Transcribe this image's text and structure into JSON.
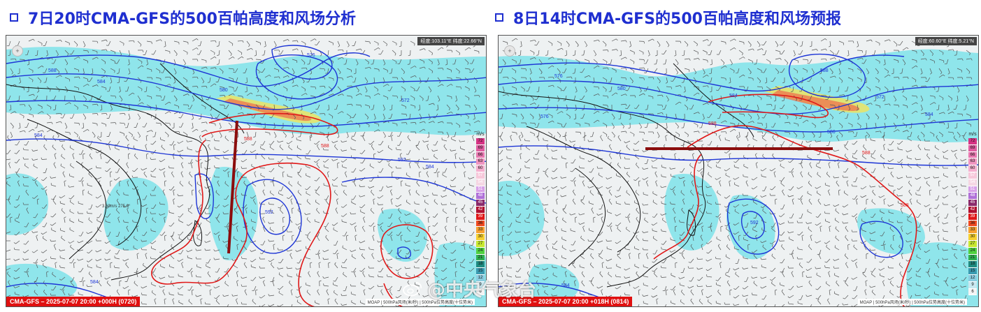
{
  "left_panel": {
    "title": "7日20时CMA-GFS的500百帕高度和风场分析",
    "coord_readout": "经度:103.11°E 纬度:22.66°N",
    "footer_label": "CMA-GFS – 2025-07-07 20:00 +000H (0720)",
    "footer_source": "MOAP | 500hPa风场(米/秒) | 500hPa位势高度(十位势米)",
    "speed_label": "3.60m/s 275.9°",
    "contour_labels": [
      "588",
      "584",
      "580",
      "576",
      "572",
      "584",
      "588",
      "592",
      "592",
      "584",
      "588",
      "584"
    ]
  },
  "right_panel": {
    "title": "8日14时CMA-GFS的500百帕高度和风场预报",
    "coord_readout": "经度:60.60°E 纬度:5.21°N",
    "footer_label": "CMA-GFS – 2025-07-07 20:00 +018H (0814)",
    "footer_source": "MOAP | 500hPa风场(米/秒) | 500hPa位势高度(十位势米)",
    "contour_labels": [
      "576",
      "580",
      "584",
      "588",
      "572",
      "576",
      "588",
      "584",
      "588",
      "592",
      "586",
      "584",
      "588"
    ]
  },
  "legend": {
    "unit": "m/s",
    "values": [
      "72",
      "69",
      "66",
      "63",
      "60",
      "57",
      "54",
      "51",
      "48",
      "45",
      "42",
      "39",
      "36",
      "33",
      "30",
      "27",
      "24",
      "21",
      "18",
      "15",
      "12",
      "9",
      "6"
    ],
    "colors": [
      "#d63384",
      "#e05ca0",
      "#e878b0",
      "#f095c0",
      "#f5b0cf",
      "#f7c8da",
      "#f5d7e3",
      "#d8a0e8",
      "#b070d8",
      "#8a2a6a",
      "#b01030",
      "#e01818",
      "#f04a20",
      "#f7a030",
      "#f6d030",
      "#c8e830",
      "#50d040",
      "#30b050",
      "#208a80",
      "#3a9ab0",
      "#8acce0",
      "#c8e8f0",
      "#f4f4f4"
    ]
  },
  "watermark": {
    "text": "@中央气象台"
  }
}
